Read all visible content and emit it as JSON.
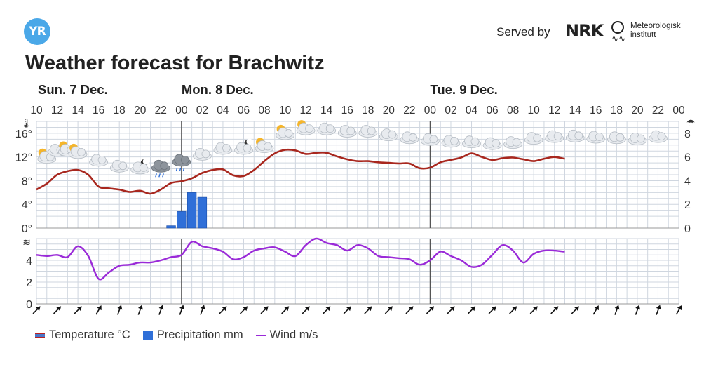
{
  "header": {
    "logo_text": "YR",
    "served_by": "Served by",
    "nrk_logo": "NRK",
    "met_logo": [
      "Meteorologisk",
      "institutt"
    ],
    "title": "Weather forecast for Brachwitz"
  },
  "legend": {
    "temperature": "Temperature °C",
    "precipitation": "Precipitation mm",
    "wind": "Wind m/s"
  },
  "colors": {
    "temperature": "#a8271e",
    "precipitation": "#2f6fd8",
    "wind": "#9a2ad8",
    "grid": "#cfd6df",
    "day_divider": "#555555",
    "brand": "#4aa8e8"
  },
  "chart_data": [
    {
      "type": "line",
      "title": "Temperature °C",
      "x_hours": [
        10,
        11,
        12,
        13,
        14,
        15,
        16,
        17,
        18,
        19,
        20,
        21,
        22,
        23,
        24,
        25,
        26,
        27,
        28,
        29,
        30,
        31,
        32,
        33,
        34,
        35,
        36,
        37,
        38,
        39,
        40,
        41,
        42,
        43,
        44,
        45,
        46,
        47,
        48,
        49,
        50,
        51,
        52,
        53,
        54,
        55,
        56,
        57,
        58,
        59,
        60,
        61,
        62,
        63,
        64,
        65,
        66,
        67,
        68,
        69,
        70,
        71,
        72
      ],
      "series": [
        {
          "name": "Temperature °C",
          "values": [
            6.5,
            7.5,
            9.0,
            9.6,
            9.8,
            9.0,
            7.0,
            6.7,
            6.5,
            6.1,
            6.3,
            5.8,
            6.5,
            7.6,
            7.9,
            8.4,
            9.3,
            9.8,
            9.9,
            8.9,
            8.8,
            9.8,
            11.3,
            12.6,
            13.2,
            13.1,
            12.5,
            12.7,
            12.7,
            12.1,
            11.6,
            11.3,
            11.3,
            11.1,
            11.0,
            10.9,
            10.9,
            10.1,
            10.2,
            11.1,
            11.5,
            11.9,
            12.6,
            12.0,
            11.5,
            11.8,
            11.9,
            11.6,
            11.3,
            11.7,
            12.0,
            11.7,
            11.6
          ]
        }
      ],
      "ylabel": "°C",
      "ylim": [
        0,
        18
      ],
      "yticks": [
        "0°",
        "4°",
        "8°",
        "12°",
        "16°"
      ]
    },
    {
      "type": "bar",
      "title": "Precipitation mm",
      "x_hours": [
        23,
        24,
        25,
        26
      ],
      "values": [
        0.2,
        1.4,
        3.0,
        2.6
      ],
      "ylim": [
        0,
        9
      ],
      "yticks": [
        "0",
        "2",
        "4",
        "6",
        "8"
      ]
    },
    {
      "type": "line",
      "title": "Wind m/s",
      "x_hours": [
        10,
        11,
        12,
        13,
        14,
        15,
        16,
        17,
        18,
        19,
        20,
        21,
        22,
        23,
        24,
        25,
        26,
        27,
        28,
        29,
        30,
        31,
        32,
        33,
        34,
        35,
        36,
        37,
        38,
        39,
        40,
        41,
        42,
        43,
        44,
        45,
        46,
        47,
        48,
        49,
        50,
        51,
        52,
        53,
        54,
        55,
        56,
        57,
        58,
        59,
        60,
        61,
        62,
        63,
        64,
        65,
        66,
        67,
        68,
        69,
        70,
        71,
        72
      ],
      "series": [
        {
          "name": "Wind m/s",
          "values": [
            4.5,
            4.4,
            4.5,
            4.3,
            5.3,
            4.4,
            2.3,
            2.9,
            3.5,
            3.6,
            3.8,
            3.8,
            4.0,
            4.3,
            4.5,
            5.7,
            5.3,
            5.1,
            4.8,
            4.1,
            4.3,
            4.9,
            5.1,
            5.2,
            4.8,
            4.4,
            5.4,
            6.0,
            5.6,
            5.4,
            4.9,
            5.4,
            5.1,
            4.4,
            4.3,
            4.2,
            4.1,
            3.6,
            4.0,
            4.8,
            4.4,
            4.0,
            3.4,
            3.6,
            4.5,
            5.4,
            4.9,
            3.8,
            4.6,
            4.9,
            4.9,
            4.8,
            4.8
          ]
        }
      ],
      "ylim": [
        0,
        6
      ],
      "yticks": [
        "0",
        "2",
        "4"
      ]
    }
  ],
  "days": [
    {
      "label": "Sun. 7 Dec.",
      "hour": 10
    },
    {
      "label": "Mon. 8 Dec.",
      "hour": 24
    },
    {
      "label": "Tue. 9 Dec.",
      "hour": 48
    }
  ],
  "hour_labels": [
    "10",
    "12",
    "14",
    "16",
    "18",
    "20",
    "22",
    "00",
    "02",
    "04",
    "06",
    "08",
    "10",
    "12",
    "14",
    "16",
    "18",
    "20",
    "22",
    "00",
    "02",
    "04",
    "06",
    "08",
    "10",
    "12",
    "14",
    "16",
    "18",
    "20",
    "22",
    "00"
  ],
  "weather_icons": [
    {
      "hour": 11,
      "icon": "sun-cloud-icon",
      "level": 12
    },
    {
      "hour": 12,
      "icon": "cloud-icon",
      "level": 13.2
    },
    {
      "hour": 13,
      "icon": "sun-cloud-icon",
      "level": 13.2
    },
    {
      "hour": 14,
      "icon": "sun-cloud-icon",
      "level": 12.8
    },
    {
      "hour": 16,
      "icon": "cloud-icon",
      "level": 11.5
    },
    {
      "hour": 18,
      "icon": "cloud-icon",
      "level": 10.5
    },
    {
      "hour": 20,
      "icon": "moon-cloud-icon",
      "level": 10.2
    },
    {
      "hour": 22,
      "icon": "rain-cloud-icon",
      "level": 10.5
    },
    {
      "hour": 24,
      "icon": "rain-cloud-icon",
      "level": 11.5
    },
    {
      "hour": 26,
      "icon": "cloud-icon",
      "level": 12.5
    },
    {
      "hour": 28,
      "icon": "cloud-icon",
      "level": 13.5
    },
    {
      "hour": 30,
      "icon": "moon-cloud-icon",
      "level": 13.5
    },
    {
      "hour": 32,
      "icon": "sun-cloud-icon",
      "level": 13.8
    },
    {
      "hour": 34,
      "icon": "sun-cloud-icon",
      "level": 16
    },
    {
      "hour": 36,
      "icon": "sun-cloud-icon",
      "level": 16.8
    },
    {
      "hour": 38,
      "icon": "cloud-icon",
      "level": 16.8
    },
    {
      "hour": 40,
      "icon": "cloud-icon",
      "level": 16.4
    },
    {
      "hour": 42,
      "icon": "cloud-icon",
      "level": 16.4
    },
    {
      "hour": 44,
      "icon": "cloud-icon",
      "level": 15.8
    },
    {
      "hour": 46,
      "icon": "cloud-icon",
      "level": 15.3
    },
    {
      "hour": 48,
      "icon": "cloud-icon",
      "level": 15.0
    },
    {
      "hour": 50,
      "icon": "cloud-icon",
      "level": 14.7
    },
    {
      "hour": 52,
      "icon": "cloud-icon",
      "level": 14.6
    },
    {
      "hour": 54,
      "icon": "cloud-icon",
      "level": 14.3
    },
    {
      "hour": 56,
      "icon": "cloud-icon",
      "level": 14.5
    },
    {
      "hour": 58,
      "icon": "cloud-icon",
      "level": 15.2
    },
    {
      "hour": 60,
      "icon": "cloud-icon",
      "level": 15.5
    },
    {
      "hour": 62,
      "icon": "cloud-icon",
      "level": 15.6
    },
    {
      "hour": 64,
      "icon": "cloud-icon",
      "level": 15.4
    },
    {
      "hour": 66,
      "icon": "cloud-icon",
      "level": 15.3
    },
    {
      "hour": 68,
      "icon": "cloud-icon",
      "level": 15.1
    },
    {
      "hour": 70,
      "icon": "cloud-icon",
      "level": 15.5
    }
  ],
  "wind_arrows": {
    "hours": [
      10,
      12,
      14,
      16,
      18,
      20,
      22,
      24,
      26,
      28,
      30,
      32,
      34,
      36,
      38,
      40,
      42,
      44,
      46,
      48,
      50,
      52,
      54,
      56,
      58,
      60,
      62,
      64,
      66,
      68,
      70,
      72
    ],
    "directions_deg": [
      45,
      45,
      45,
      30,
      20,
      20,
      20,
      20,
      20,
      45,
      45,
      45,
      45,
      45,
      45,
      45,
      45,
      45,
      45,
      45,
      45,
      45,
      45,
      45,
      45,
      45,
      45,
      30,
      20,
      20,
      20,
      30
    ]
  }
}
